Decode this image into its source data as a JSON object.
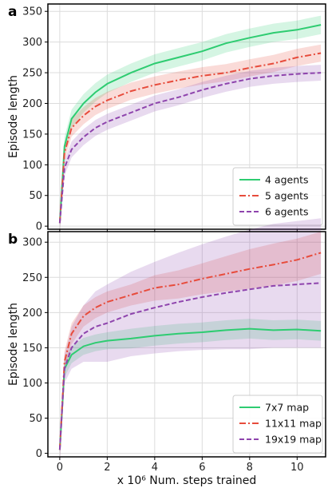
{
  "chart_data": [
    {
      "panel": "a",
      "type": "line",
      "title": "",
      "xlabel": "",
      "ylabel": "Episode length",
      "xlim": [
        -0.5,
        11.2
      ],
      "ylim": [
        -5,
        362
      ],
      "xticks": [
        0,
        2,
        4,
        6,
        8,
        10
      ],
      "yticks": [
        0,
        50,
        100,
        150,
        200,
        250,
        300,
        350
      ],
      "grid": true,
      "legend_position": "lower-right",
      "series": [
        {
          "name": "4 agents",
          "color": "#2ecc71",
          "dash": "solid",
          "x": [
            0,
            0.2,
            0.5,
            1,
            1.5,
            2,
            3,
            4,
            5,
            6,
            7,
            8,
            9,
            10,
            11
          ],
          "y": [
            5,
            130,
            175,
            200,
            218,
            232,
            250,
            265,
            275,
            285,
            298,
            307,
            315,
            320,
            328
          ],
          "band": [
            15,
            15,
            15,
            15,
            15,
            15,
            15,
            15,
            15,
            15,
            15,
            15,
            15,
            15,
            15
          ]
        },
        {
          "name": "5 agents",
          "color": "#e74c3c",
          "dash": "dashdot",
          "x": [
            0,
            0.2,
            0.5,
            1,
            1.5,
            2,
            3,
            4,
            5,
            6,
            7,
            8,
            9,
            10,
            11
          ],
          "y": [
            5,
            120,
            160,
            180,
            195,
            205,
            220,
            230,
            238,
            245,
            250,
            258,
            265,
            275,
            282
          ],
          "band": [
            14,
            14,
            14,
            14,
            14,
            14,
            14,
            14,
            14,
            14,
            14,
            14,
            14,
            14,
            14
          ]
        },
        {
          "name": "6 agents",
          "color": "#8e44ad",
          "dash": "dashed",
          "x": [
            0,
            0.2,
            0.5,
            1,
            1.5,
            2,
            3,
            4,
            5,
            6,
            7,
            8,
            9,
            10,
            11
          ],
          "y": [
            5,
            95,
            125,
            145,
            160,
            170,
            185,
            200,
            210,
            222,
            232,
            240,
            245,
            248,
            250
          ],
          "band": [
            13,
            13,
            13,
            13,
            13,
            13,
            13,
            13,
            13,
            13,
            13,
            13,
            13,
            13,
            13
          ]
        }
      ]
    },
    {
      "panel": "b",
      "type": "line",
      "title": "",
      "xlabel": "x 10⁶ Num. steps trained",
      "ylabel": "Episode length",
      "xlim": [
        -0.5,
        11.2
      ],
      "ylim": [
        -5,
        315
      ],
      "xticks": [
        0,
        2,
        4,
        6,
        8,
        10
      ],
      "yticks": [
        0,
        50,
        100,
        150,
        200,
        250,
        300
      ],
      "grid": true,
      "legend_position": "lower-right",
      "series": [
        {
          "name": "7x7 map",
          "color": "#2ecc71",
          "dash": "solid",
          "x": [
            0,
            0.2,
            0.5,
            1,
            1.5,
            2,
            3,
            4,
            5,
            6,
            7,
            8,
            9,
            10,
            11
          ],
          "y": [
            5,
            120,
            140,
            152,
            157,
            160,
            163,
            167,
            170,
            172,
            175,
            177,
            175,
            176,
            174
          ],
          "band": [
            12,
            12,
            12,
            12,
            12,
            12,
            14,
            14,
            14,
            14,
            14,
            14,
            14,
            14,
            14
          ]
        },
        {
          "name": "11x11 map",
          "color": "#e74c3c",
          "dash": "dashdot",
          "x": [
            0,
            0.2,
            0.5,
            1,
            1.5,
            2,
            3,
            4,
            5,
            6,
            7,
            8,
            9,
            10,
            11
          ],
          "y": [
            5,
            130,
            170,
            195,
            207,
            215,
            225,
            235,
            240,
            248,
            255,
            262,
            268,
            275,
            285
          ],
          "band": [
            15,
            15,
            15,
            15,
            15,
            15,
            15,
            18,
            20,
            22,
            25,
            28,
            30,
            30,
            30
          ]
        },
        {
          "name": "19x19 map",
          "color": "#8e44ad",
          "dash": "dashed",
          "x": [
            0,
            0.2,
            0.5,
            1,
            1.5,
            2,
            3,
            4,
            5,
            6,
            7,
            8,
            9,
            10,
            11
          ],
          "y": [
            5,
            120,
            150,
            170,
            180,
            185,
            198,
            207,
            215,
            222,
            228,
            233,
            238,
            240,
            242
          ],
          "band": [
            20,
            20,
            30,
            40,
            50,
            55,
            60,
            65,
            70,
            75,
            80,
            85,
            88,
            90,
            92
          ]
        }
      ]
    }
  ]
}
